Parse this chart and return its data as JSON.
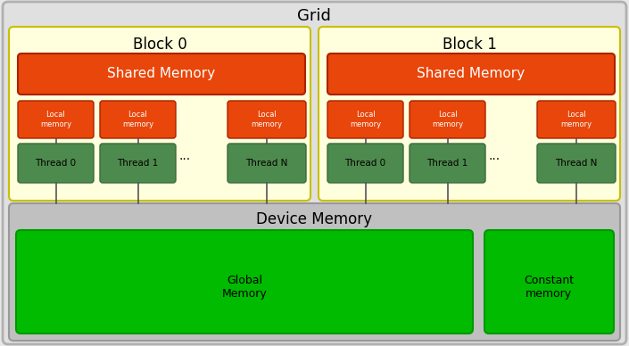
{
  "title": "Grid",
  "fig_bg_color": "#e8e8e8",
  "grid_bg_color": "#e0e0e0",
  "grid_border_color": "#b0b0b0",
  "block_bg_color": "#ffffdd",
  "block_border_color": "#c8c000",
  "shared_mem_color": "#e8460a",
  "shared_mem_text_color": "#ffffff",
  "local_mem_color": "#e8460a",
  "local_mem_text_color": "#ffffff",
  "thread_color": "#4d8a4d",
  "thread_border_color": "#3a6b3a",
  "thread_text_color": "#000000",
  "device_mem_bg_color": "#c0c0c0",
  "device_mem_border_color": "#999999",
  "global_mem_color": "#00bb00",
  "global_mem_text_color": "#000000",
  "constant_mem_color": "#00bb00",
  "constant_mem_text_color": "#000000",
  "block0_label": "Block 0",
  "block1_label": "Block 1",
  "shared_mem_label": "Shared Memory",
  "local_mem_label": "Local\nmemory",
  "thread_labels_b0": [
    "Thread 0",
    "Thread 1",
    "Thread N"
  ],
  "thread_labels_b1": [
    "Thread 0",
    "Thread 1",
    "Thread N"
  ],
  "dots": "...",
  "device_mem_label": "Device Memory",
  "global_mem_label": "Global\nMemory",
  "constant_mem_label": "Constant\nmemory"
}
